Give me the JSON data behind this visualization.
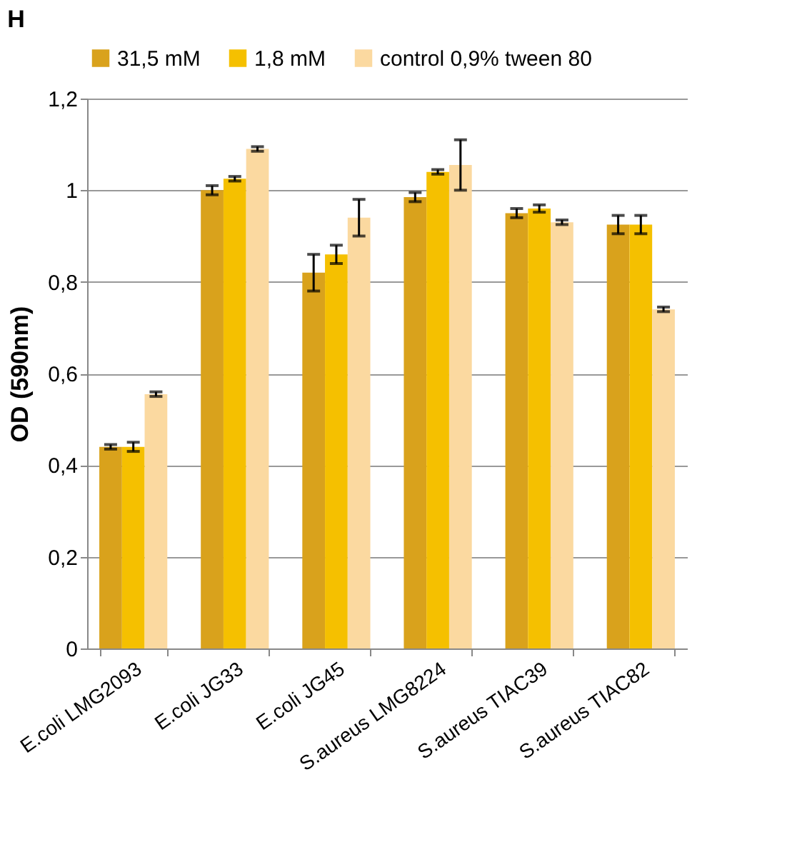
{
  "chart_data": {
    "type": "bar",
    "title": "H",
    "ylabel": "OD (590nm)",
    "categories": [
      "E.coli LMG2093",
      "E.coli JG33",
      "E.coli JG45",
      "S.aureus LMG8224",
      "S.aureus TIAC39",
      "S.aureus TIAC82"
    ],
    "series": [
      {
        "name": "31,5 mM",
        "color": "#d9a21c",
        "values": [
          0.44,
          1.0,
          0.82,
          0.985,
          0.95,
          0.925
        ],
        "errors": [
          0.005,
          0.01,
          0.04,
          0.01,
          0.01,
          0.02
        ]
      },
      {
        "name": "1,8 mM",
        "color": "#f5c000",
        "values": [
          0.44,
          1.025,
          0.86,
          1.04,
          0.96,
          0.925
        ],
        "errors": [
          0.01,
          0.005,
          0.02,
          0.005,
          0.008,
          0.02
        ]
      },
      {
        "name": "control 0,9% tween 80",
        "color": "#fbd9a0",
        "values": [
          0.555,
          1.09,
          0.94,
          1.055,
          0.93,
          0.74
        ],
        "errors": [
          0.005,
          0.005,
          0.04,
          0.055,
          0.005,
          0.005
        ]
      }
    ],
    "ylim": [
      0,
      1.2
    ],
    "yticks": [
      0,
      {
        "value": 0.2,
        "label": "0,2"
      },
      {
        "value": 0.4,
        "label": "0,4"
      },
      {
        "value": 0.6,
        "label": "0,6"
      },
      {
        "value": 0.8,
        "label": "0,8"
      },
      1,
      {
        "value": 1.2,
        "label": "1,2"
      }
    ],
    "grid": "y",
    "legend": "top"
  }
}
